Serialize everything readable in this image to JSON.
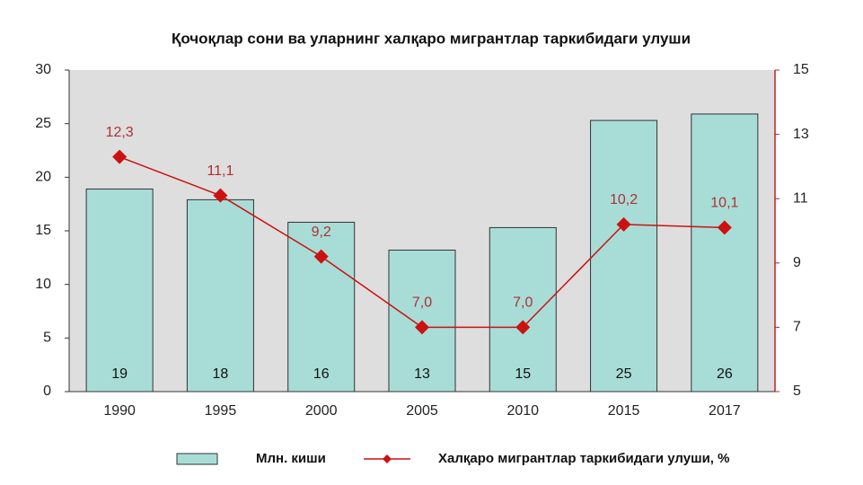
{
  "chart_data": {
    "type": "bar",
    "title": "Қочоқлар сони ва уларнинг халқаро мигрантлар таркибидаги улуши",
    "categories": [
      "1990",
      "1995",
      "2000",
      "2005",
      "2010",
      "2015",
      "2017"
    ],
    "series": [
      {
        "name": "Млн. киши",
        "type": "bar",
        "color": "#a8ddd7",
        "values": [
          18.9,
          17.9,
          15.8,
          13.2,
          15.3,
          25.3,
          25.9
        ],
        "value_labels": [
          "19",
          "18",
          "16",
          "13",
          "15",
          "25",
          "26"
        ]
      },
      {
        "name": "Халқаро мигрантлар таркибидаги улуши, %",
        "type": "line",
        "axis": "y2",
        "color": "#cc1111",
        "values": [
          12.3,
          11.1,
          9.2,
          7.0,
          7.0,
          10.2,
          10.1
        ],
        "value_labels": [
          "12,3",
          "11,1",
          "9,2",
          "7,0",
          "7,0",
          "10,2",
          "10,1"
        ]
      }
    ],
    "ylim": [
      0,
      30
    ],
    "yticks": [
      0,
      5,
      10,
      15,
      20,
      25,
      30
    ],
    "y2lim": [
      5,
      15
    ],
    "y2ticks": [
      5,
      7,
      9,
      11,
      13,
      15
    ],
    "grid": false
  }
}
